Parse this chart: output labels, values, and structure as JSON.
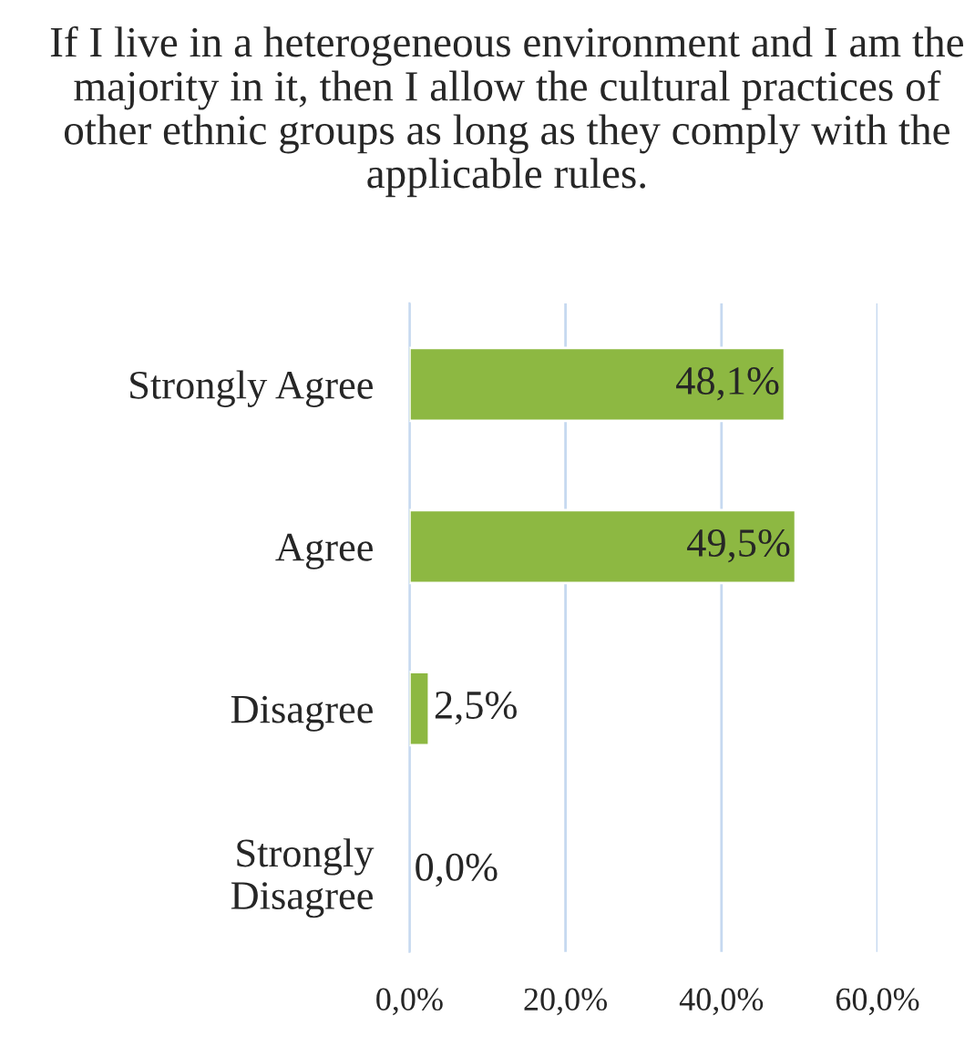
{
  "chart_data": {
    "type": "bar",
    "orientation": "horizontal",
    "title": "If I live in a heterogeneous environment and I am the majority in it, then I allow the cultural practices of other ethnic groups as long as they comply with the applicable rules.",
    "categories": [
      "Strongly Agree",
      "Agree",
      "Disagree",
      "Strongly\nDisagree"
    ],
    "values": [
      48.1,
      49.5,
      2.5,
      0.0
    ],
    "value_labels": [
      "48,1%",
      "49,5%",
      "2,5%",
      "0,0%"
    ],
    "color": "#8db842",
    "xlim": [
      0,
      60
    ],
    "xticks": [
      {
        "value": 0,
        "label": "0,0%"
      },
      {
        "value": 20,
        "label": "20,0%"
      },
      {
        "value": 40,
        "label": "40,0%"
      },
      {
        "value": 60,
        "label": "60,0%"
      }
    ],
    "grid": "x"
  }
}
